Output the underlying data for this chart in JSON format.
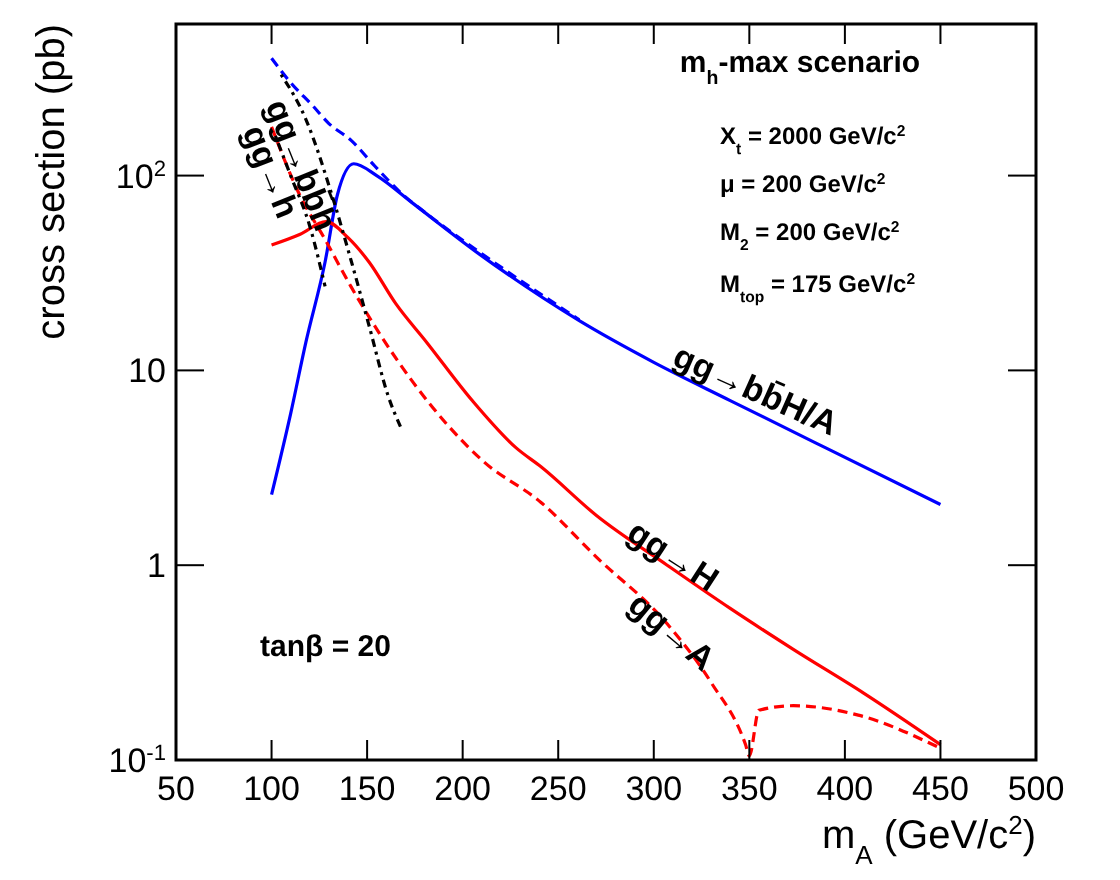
{
  "chart_data": {
    "type": "line",
    "xlabel": "m$_{A}$ (GeV/c$^{2}$)",
    "ylabel": "cross section (pb)",
    "log": "y",
    "xlim": [
      50,
      500
    ],
    "ylim": [
      0.1,
      600
    ],
    "xticks": [
      50,
      100,
      150,
      200,
      250,
      300,
      350,
      400,
      450,
      500
    ],
    "yticks": [
      {
        "value": 0.1,
        "label": "10$^{-1}$"
      },
      1,
      10,
      {
        "value": 100,
        "label": "10$^{2}$"
      }
    ],
    "grid": false,
    "series": [
      {
        "name": "gg→bb̄H/A",
        "color": "#0000ff",
        "line_style": "solid",
        "x": [
          100,
          110,
          118,
          128,
          134.5,
          143,
          155,
          174,
          208,
          261,
          300,
          340,
          390,
          450
        ],
        "values": [
          2.3,
          6,
          14,
          36,
          80,
          115,
          100,
          72,
          40,
          18,
          11,
          7,
          4,
          2.05
        ]
      },
      {
        "color": "#0000ff",
        "line_style": "dashed",
        "x": [
          100,
          110,
          121.6,
          130,
          141.5,
          154,
          168,
          180,
          208,
          261
        ],
        "values": [
          400,
          300,
          228,
          185,
          152,
          112,
          81,
          65,
          41,
          18.2
        ]
      },
      {
        "name": "gg→H",
        "color": "#ff0000",
        "line_style": "solid",
        "x": [
          100,
          115,
          128.5,
          140,
          151,
          165,
          181,
          205,
          228,
          241,
          270,
          307,
          340,
          373,
          410,
          450
        ],
        "values": [
          44,
          50,
          58,
          48,
          36,
          22,
          14,
          7,
          4,
          3.2,
          1.8,
          1.0,
          0.6,
          0.37,
          0.22,
          0.12
        ]
      },
      {
        "name": "gg→A",
        "color": "#ff0000",
        "line_style": "dashed",
        "x": [
          100,
          114.6,
          128,
          141.5,
          174,
          211,
          241,
          270,
          307,
          330,
          348,
          350,
          355,
          373,
          407,
          450
        ],
        "values": [
          178,
          80,
          47,
          27,
          8.7,
          3.4,
          2.1,
          1.1,
          0.5,
          0.25,
          0.12,
          0.105,
          0.18,
          0.19,
          0.17,
          0.115
        ]
      },
      {
        "name": "gg→bb̄h",
        "color": "#000000",
        "line_style": "dotted",
        "x": [
          105,
          118,
          131.5,
          141.5,
          151,
          161,
          168
        ],
        "values": [
          330,
          194,
          80,
          37,
          17,
          7.4,
          5
        ]
      },
      {
        "name": "gg→h",
        "color": "#000000",
        "line_style": "dotted",
        "x": [
          102,
          110,
          120,
          128
        ],
        "values": [
          160,
          100,
          55,
          27
        ]
      }
    ],
    "annotations": [
      "m$_{h}$-max scenario",
      "X$_{t}$ = 2000 GeV/c$^{2}$",
      "μ = 200 GeV/c$^{2}$",
      "M$_{2}$ = 200 GeV/c$^{2}$",
      "M$_{top}$ = 175 GeV/c$^{2}$",
      "tanβ = 20"
    ]
  }
}
